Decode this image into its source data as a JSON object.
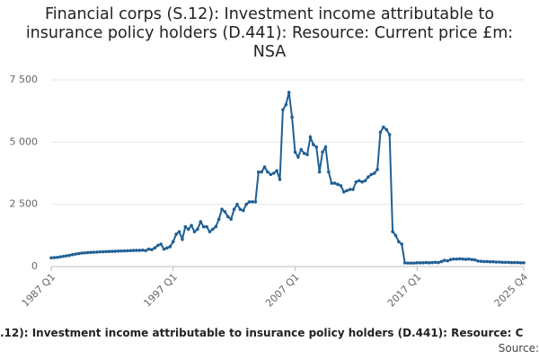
{
  "chart_data": {
    "type": "line",
    "title": "Financial corps (S.12): Investment income attributable to insurance policy holders (D.441): Resource: Current price £m: NSA",
    "footer": ".12): Investment income attributable to insurance policy holders (D.441): Resource: C",
    "source": "Source:",
    "categories": [
      "1987 Q1",
      null,
      null,
      null,
      null,
      null,
      null,
      null,
      null,
      null,
      null,
      null,
      null,
      null,
      null,
      null,
      null,
      null,
      null,
      null,
      null,
      null,
      null,
      null,
      null,
      null,
      null,
      null,
      null,
      null,
      null,
      null,
      null,
      null,
      null,
      null,
      null,
      null,
      null,
      null,
      "1997 Q1",
      null,
      null,
      null,
      null,
      null,
      null,
      null,
      null,
      null,
      null,
      null,
      null,
      null,
      null,
      null,
      null,
      null,
      null,
      null,
      null,
      null,
      null,
      null,
      null,
      null,
      null,
      null,
      null,
      null,
      null,
      null,
      null,
      null,
      null,
      null,
      null,
      null,
      null,
      null,
      "2007 Q1",
      null,
      null,
      null,
      null,
      null,
      null,
      null,
      null,
      null,
      null,
      null,
      null,
      null,
      null,
      null,
      null,
      null,
      null,
      null,
      null,
      null,
      null,
      null,
      null,
      null,
      null,
      null,
      null,
      null,
      null,
      null,
      null,
      null,
      null,
      null,
      null,
      null,
      null,
      null,
      "2017 Q1",
      null,
      null,
      null,
      null,
      null,
      null,
      null,
      null,
      null,
      null,
      null,
      null,
      null,
      null,
      null,
      null,
      null,
      null,
      null,
      null,
      null,
      null,
      null,
      null,
      null,
      null,
      null,
      null,
      null,
      null,
      null,
      null,
      null,
      null,
      "2025 Q4"
    ],
    "series": [
      {
        "color": "#206095",
        "values": [
          350,
          360,
          370,
          390,
          410,
          430,
          450,
          480,
          500,
          520,
          540,
          550,
          560,
          570,
          575,
          580,
          590,
          595,
          600,
          605,
          610,
          615,
          620,
          625,
          630,
          635,
          640,
          645,
          650,
          650,
          660,
          640,
          700,
          680,
          750,
          850,
          900,
          700,
          750,
          800,
          1000,
          1300,
          1400,
          1100,
          1600,
          1500,
          1650,
          1400,
          1500,
          1800,
          1600,
          1600,
          1400,
          1500,
          1600,
          1900,
          2300,
          2200,
          2000,
          1900,
          2300,
          2500,
          2300,
          2250,
          2500,
          2600,
          2600,
          2600,
          3800,
          3800,
          4000,
          3800,
          3700,
          3750,
          3850,
          3500,
          6300,
          6500,
          7000,
          6000,
          4600,
          4400,
          4700,
          4550,
          4500,
          5200,
          4900,
          4800,
          3800,
          4600,
          4800,
          3800,
          3350,
          3350,
          3300,
          3250,
          3000,
          3050,
          3100,
          3100,
          3400,
          3450,
          3400,
          3450,
          3600,
          3700,
          3750,
          3900,
          5400,
          5600,
          5500,
          5300,
          1400,
          1250,
          1000,
          900,
          150,
          140,
          140,
          140,
          150,
          150,
          150,
          160,
          150,
          160,
          170,
          160,
          200,
          250,
          230,
          280,
          300,
          300,
          310,
          300,
          290,
          300,
          280,
          270,
          220,
          210,
          200,
          200,
          190,
          190,
          180,
          180,
          170,
          170,
          170,
          160,
          160,
          160,
          150,
          150
        ]
      }
    ],
    "ylim": [
      0,
      7500
    ],
    "yticks": [
      0,
      {
        "value": 2500,
        "label": "2 500"
      },
      {
        "value": 5000,
        "label": "5 000"
      },
      {
        "value": 7500,
        "label": "7 500"
      }
    ],
    "grid": true
  }
}
